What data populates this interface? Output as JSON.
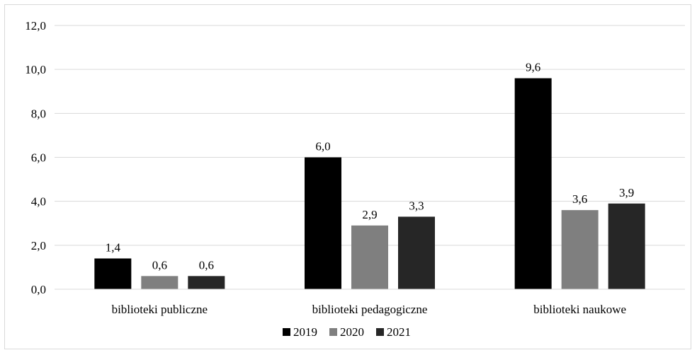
{
  "chart_data": {
    "type": "bar",
    "title": "",
    "xlabel": "",
    "ylabel": "",
    "categories": [
      "biblioteki publiczne",
      "biblioteki pedagogiczne",
      "biblioteki naukowe"
    ],
    "series": [
      {
        "name": "2019",
        "values": [
          1.4,
          6.0,
          9.6
        ],
        "labels": [
          "1,4",
          "6,0",
          "9,6"
        ],
        "color": "#000000"
      },
      {
        "name": "2020",
        "values": [
          0.6,
          2.9,
          3.6
        ],
        "labels": [
          "0,6",
          "2,9",
          "3,6"
        ],
        "color": "#7f7f7f"
      },
      {
        "name": "2021",
        "values": [
          0.6,
          3.3,
          3.9
        ],
        "labels": [
          "0,6",
          "3,3",
          "3,9"
        ],
        "color": "#262626"
      }
    ],
    "ylim": [
      0,
      12
    ],
    "yticks": [
      0,
      2,
      4,
      6,
      8,
      10,
      12
    ],
    "ytick_labels": [
      "0,0",
      "2,0",
      "4,0",
      "6,0",
      "8,0",
      "10,0",
      "12,0"
    ],
    "grid": true,
    "legend_position": "bottom"
  }
}
